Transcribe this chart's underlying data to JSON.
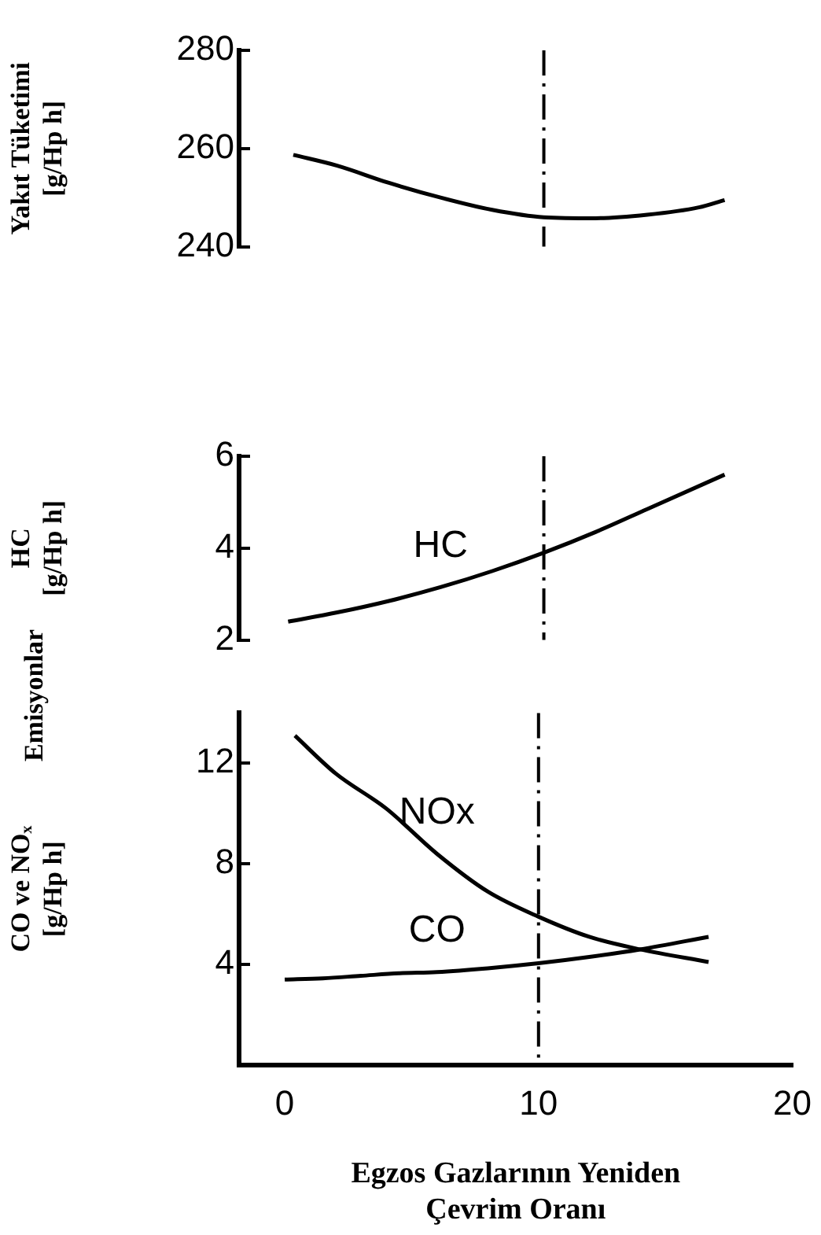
{
  "chart_data": [
    {
      "type": "line",
      "ylabel": "Yakıt Tüketimi\n[g/Hp h]",
      "xlim": [
        -1.8,
        20
      ],
      "ylim": [
        240,
        280
      ],
      "yticks": [
        240,
        260,
        280
      ],
      "tick_labels": "y",
      "grid": false,
      "legend": false,
      "marker": "none",
      "line_style": "solid",
      "series": [
        {
          "color": "#000000",
          "x": [
            0.3,
            2,
            4,
            6,
            8,
            10,
            12,
            14,
            16,
            17
          ],
          "values": [
            258.7,
            256.5,
            253,
            250,
            247.5,
            246,
            245.8,
            246.5,
            248,
            249.5
          ]
        }
      ],
      "ref_lines": [
        {
          "axis": "x",
          "value": 10,
          "line_style": "dashed",
          "color": "#000000"
        }
      ]
    },
    {
      "type": "line",
      "ylabel": "HC\n[g/Hp h]",
      "xlim": [
        -1.8,
        20
      ],
      "ylim": [
        2,
        6
      ],
      "yticks": [
        2,
        4,
        6
      ],
      "tick_labels": "y",
      "grid": false,
      "legend": false,
      "marker": "none",
      "line_style": "solid",
      "series": [
        {
          "name": "HC",
          "color": "#000000",
          "x": [
            0.1,
            2,
            4,
            6,
            8,
            10,
            12,
            14,
            17
          ],
          "values": [
            2.4,
            2.6,
            2.85,
            3.15,
            3.5,
            3.9,
            4.35,
            4.85,
            5.6
          ]
        }
      ],
      "ref_lines": [
        {
          "axis": "x",
          "value": 10,
          "line_style": "dashed",
          "color": "#000000"
        }
      ]
    },
    {
      "type": "line",
      "xlabel": "Egzos Gazlarının Yeniden\nÇevrim Oranı",
      "ylabel": "CO ve NOₓ\n[g/Hp h]",
      "xlim": [
        -1.8,
        20
      ],
      "xticks": [
        0,
        10,
        20
      ],
      "ylim": [
        0,
        14
      ],
      "yticks": [
        4,
        8,
        12
      ],
      "grid": false,
      "legend": false,
      "marker": "none",
      "line_style": "solid",
      "series": [
        {
          "name": "NOx",
          "color": "#000000",
          "x": [
            0.4,
            2,
            4,
            6,
            8,
            10,
            12,
            14,
            16.7
          ],
          "values": [
            13.1,
            11.6,
            10.2,
            8.4,
            6.9,
            5.9,
            5.1,
            4.6,
            4.1
          ]
        },
        {
          "name": "CO",
          "color": "#000000",
          "x": [
            0,
            1.5,
            3,
            4.5,
            6,
            8,
            10,
            12,
            14,
            16.7
          ],
          "values": [
            3.4,
            3.45,
            3.55,
            3.65,
            3.7,
            3.85,
            4.05,
            4.3,
            4.6,
            5.1
          ]
        }
      ],
      "ref_lines": [
        {
          "axis": "x",
          "value": 10,
          "line_style": "dashed",
          "color": "#000000"
        }
      ],
      "annotations": [
        "Emisyonlar"
      ]
    }
  ]
}
